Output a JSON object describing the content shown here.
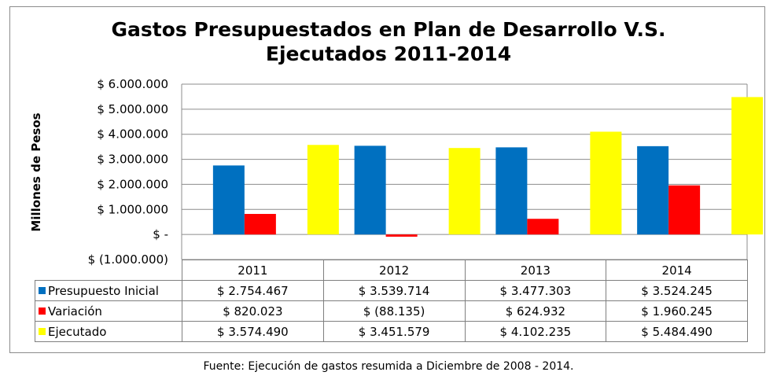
{
  "chart_data": {
    "type": "bar",
    "title_line1": "Gastos Presupuestados en Plan de Desarrollo V.S.",
    "title_line2": "Ejecutados 2011-2014",
    "ylabel": "Millones de Pesos",
    "xlabel": "",
    "categories": [
      "2011",
      "2012",
      "2013",
      "2014"
    ],
    "ylim": [
      -1000000,
      6000000
    ],
    "yticks": [
      6000000,
      5000000,
      4000000,
      3000000,
      2000000,
      1000000,
      0,
      -1000000
    ],
    "ytick_labels": [
      "$ 6.000.000",
      "$ 5.000.000",
      "$ 4.000.000",
      "$ 3.000.000",
      "$ 2.000.000",
      "$ 1.000.000",
      "$ -",
      "$ (1.000.000)"
    ],
    "grid": true,
    "legend": "data-table",
    "series": [
      {
        "name": "Presupuesto Inicial",
        "color": "#0070c0",
        "values": [
          2754467,
          3539714,
          3477303,
          3524245
        ],
        "labels": [
          "$ 2.754.467",
          "$ 3.539.714",
          "$ 3.477.303",
          "$ 3.524.245"
        ]
      },
      {
        "name": "Variación",
        "color": "#ff0000",
        "values": [
          820023,
          -88135,
          624932,
          1960245
        ],
        "labels": [
          "$ 820.023",
          "$ (88.135)",
          "$ 624.932",
          "$ 1.960.245"
        ]
      },
      {
        "name": "Ejecutado",
        "color": "#ffff00",
        "values": [
          3574490,
          3451579,
          4102235,
          5484490
        ],
        "labels": [
          "$ 3.574.490",
          "$ 3.451.579",
          "$ 4.102.235",
          "$ 5.484.490"
        ]
      }
    ]
  },
  "caption": "Fuente: Ejecución de gastos resumida a Diciembre de 2008 - 2014."
}
